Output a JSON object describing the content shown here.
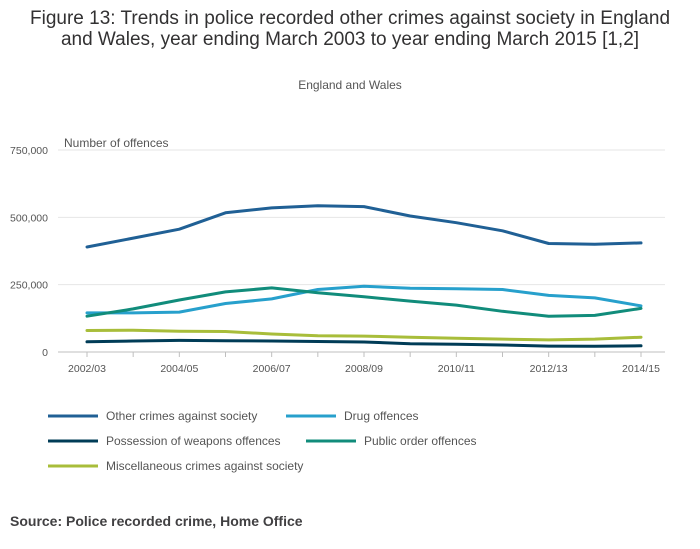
{
  "chart_data": {
    "type": "line",
    "title": "Figure 13: Trends in police recorded other crimes against society in England and Wales, year ending March 2003 to year ending March 2015 [1,2]",
    "subtitle": "England and Wales",
    "ylabel": "Number of offences",
    "xlabel": "",
    "ylim": [
      0,
      750000
    ],
    "yticks": [
      0,
      250000,
      500000,
      750000
    ],
    "ytick_labels": [
      "0",
      "250,000",
      "500,000",
      "750,000"
    ],
    "categories": [
      "2002/03",
      "2003/04",
      "2004/05",
      "2005/06",
      "2006/07",
      "2007/08",
      "2008/09",
      "2009/10",
      "2010/11",
      "2011/12",
      "2012/13",
      "2013/14",
      "2014/15"
    ],
    "xtick_labels": [
      "2002/03",
      "2004/05",
      "2006/07",
      "2008/09",
      "2010/11",
      "2012/13",
      "2014/15"
    ],
    "series": [
      {
        "name": "Other crimes against society",
        "color": "#206095",
        "values": [
          390000,
          423000,
          456000,
          517000,
          535000,
          543000,
          540000,
          505000,
          480000,
          450000,
          403000,
          400000,
          405000
        ]
      },
      {
        "name": "Drug offences",
        "color": "#27a0cc",
        "values": [
          145000,
          145000,
          148000,
          180000,
          197000,
          232000,
          244000,
          237000,
          235000,
          232000,
          210000,
          201000,
          171000
        ]
      },
      {
        "name": "Possession of weapons offences",
        "color": "#003c57",
        "values": [
          38000,
          41000,
          43000,
          42000,
          41000,
          39000,
          37000,
          31000,
          29000,
          26000,
          22000,
          21000,
          23000
        ]
      },
      {
        "name": "Public order offences",
        "color": "#118c7b",
        "values": [
          133000,
          160000,
          193000,
          223000,
          238000,
          220000,
          205000,
          189000,
          174000,
          151000,
          133000,
          136000,
          162000
        ]
      },
      {
        "name": "Miscellaneous crimes against society",
        "color": "#a8bd3a",
        "values": [
          80000,
          81000,
          77000,
          76000,
          67000,
          60000,
          59000,
          55000,
          51000,
          48000,
          45000,
          48000,
          55000
        ]
      }
    ]
  },
  "source": "Source: Police recorded crime, Home Office"
}
